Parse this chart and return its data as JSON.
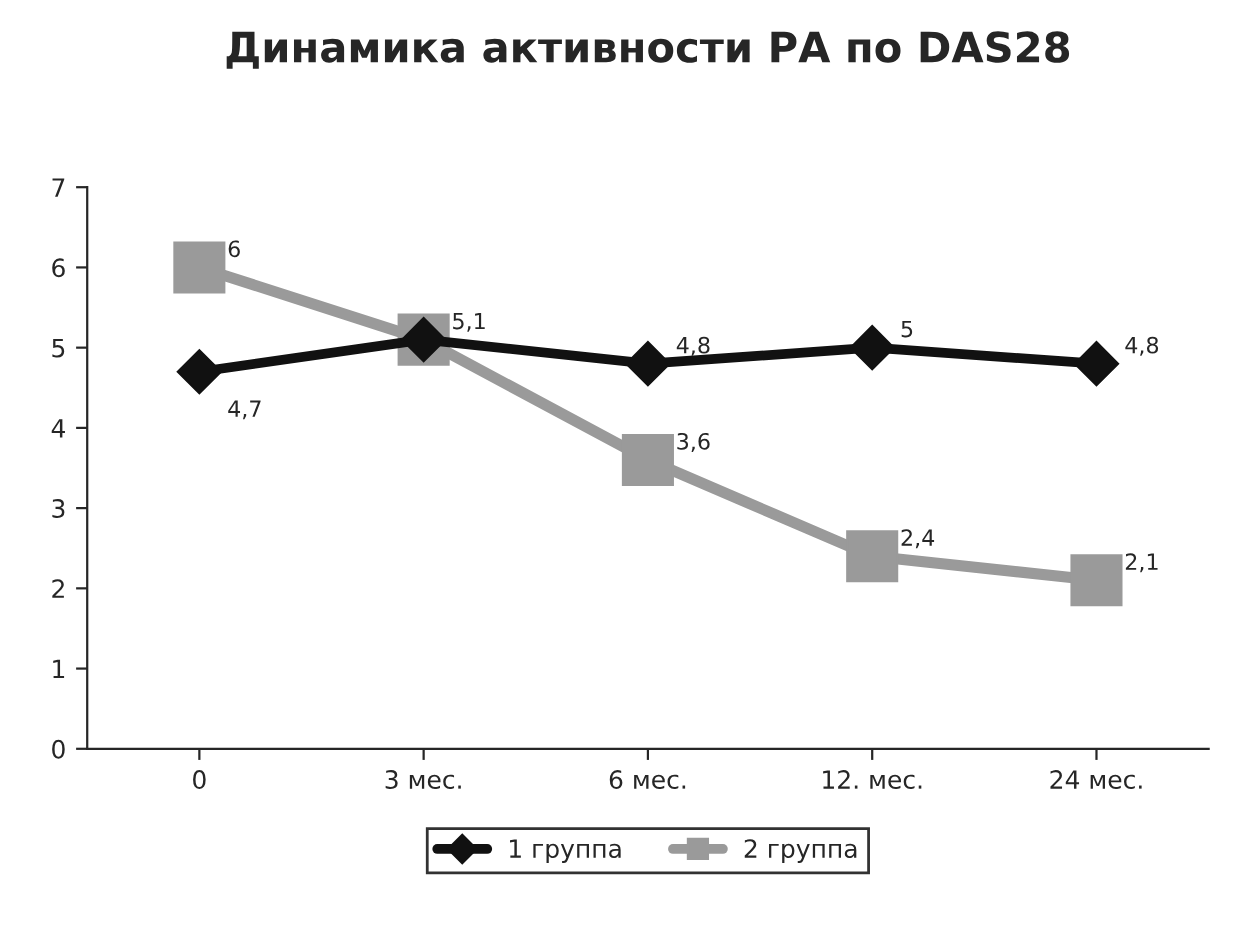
{
  "chart_data": {
    "type": "line",
    "title": "Динамика активности РА по DAS28",
    "categories": [
      "0",
      "3 мес.",
      "6 мес.",
      "12. мес.",
      "24 мес."
    ],
    "series": [
      {
        "name": "1 группа",
        "color": "#111111",
        "marker": "diamond",
        "values": [
          4.7,
          5.1,
          4.8,
          5,
          4.8
        ],
        "value_labels": [
          "4,7",
          null,
          "4,8",
          "5",
          "4,8"
        ]
      },
      {
        "name": "2 группа",
        "color": "#9a9a9a",
        "marker": "square",
        "values": [
          6,
          5.1,
          3.6,
          2.4,
          2.1
        ],
        "value_labels": [
          "6",
          "5,1",
          "3,6",
          "2,4",
          "2,1"
        ]
      }
    ],
    "ylim": [
      0,
      7
    ],
    "yticks": [
      0,
      1,
      2,
      3,
      4,
      5,
      6,
      7
    ],
    "grid": false,
    "legend": "bottom",
    "line_style": "solid"
  }
}
